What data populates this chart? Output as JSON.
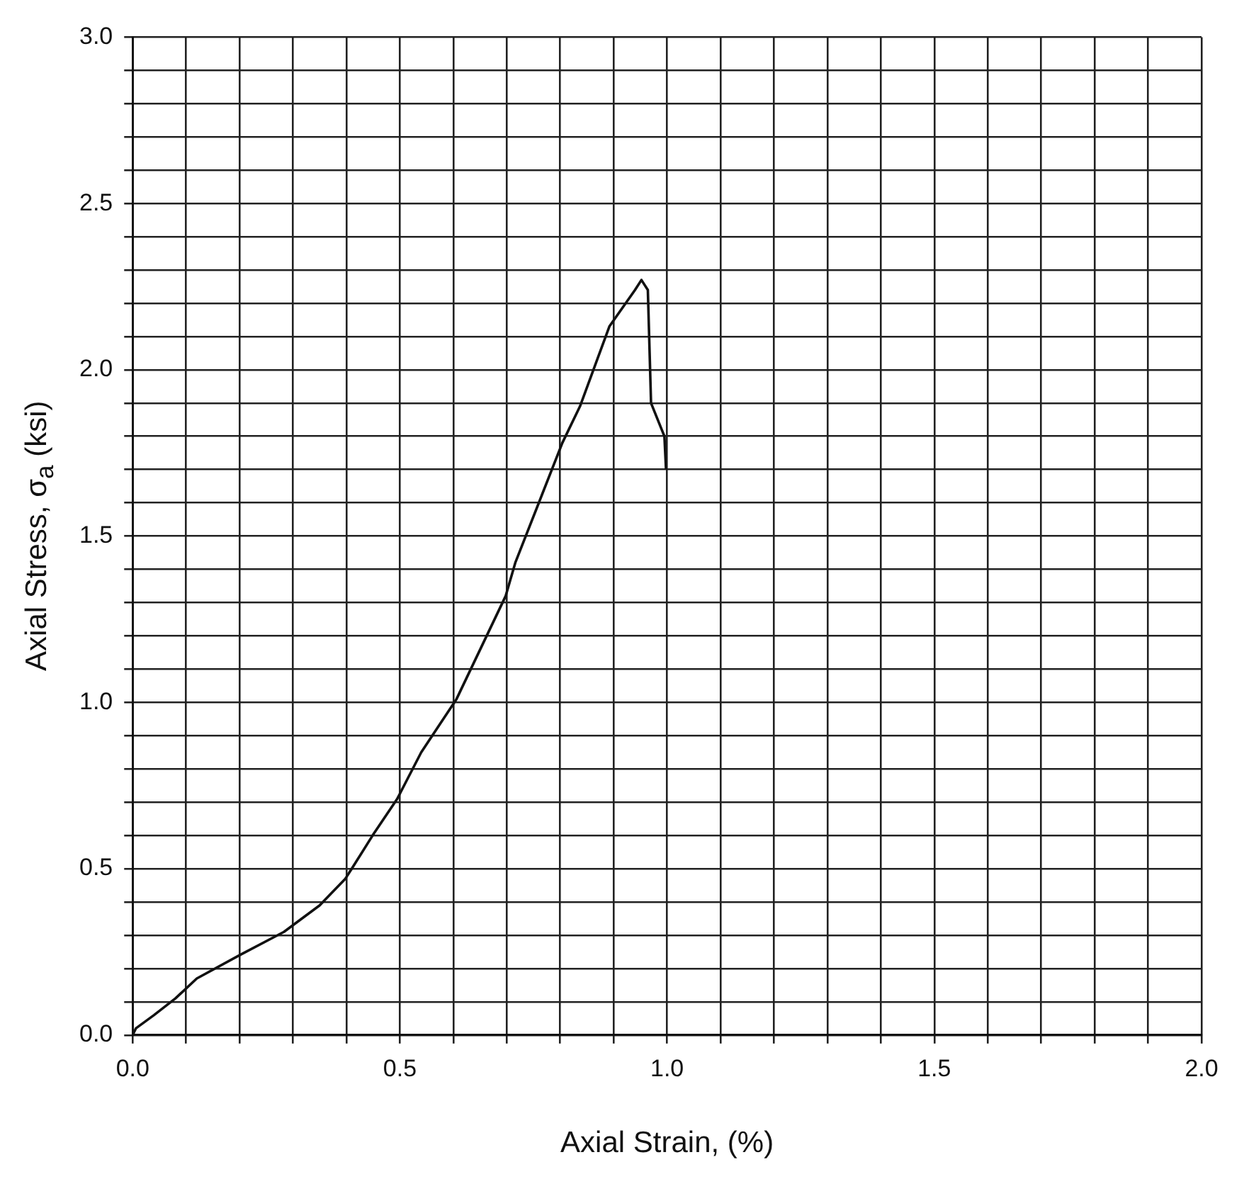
{
  "chart_data": {
    "type": "line",
    "xlabel": "Axial Strain, (%)",
    "ylabel": "Axial Stress, σ$_{a}$ (ksi)",
    "x": [
      0,
      0.006,
      0.04,
      0.08,
      0.12,
      0.2,
      0.283,
      0.35,
      0.398,
      0.41,
      0.449,
      0.495,
      0.54,
      0.606,
      0.698,
      0.716,
      0.804,
      0.837,
      0.892,
      0.94,
      0.952,
      0.964,
      0.97,
      0.99,
      0.995,
      0.998
    ],
    "series": [
      {
        "color": "#111111",
        "values": [
          0,
          0.02,
          0.06,
          0.11,
          0.17,
          0.24,
          0.31,
          0.39,
          0.47,
          0.5,
          0.6,
          0.71,
          0.85,
          1.01,
          1.32,
          1.42,
          1.78,
          1.89,
          2.13,
          2.24,
          2.27,
          2.24,
          1.9,
          1.82,
          1.8,
          1.7
        ]
      }
    ],
    "xlim": [
      0,
      2
    ],
    "xticks": [
      {
        "value": 0,
        "label": "0.0"
      },
      {
        "value": 0.1,
        "label": null
      },
      {
        "value": 0.2,
        "label": null
      },
      {
        "value": 0.3,
        "label": null
      },
      {
        "value": 0.4,
        "label": null
      },
      {
        "value": 0.5,
        "label": "0.5"
      },
      {
        "value": 0.6,
        "label": null
      },
      {
        "value": 0.7,
        "label": null
      },
      {
        "value": 0.8,
        "label": null
      },
      {
        "value": 0.9,
        "label": null
      },
      {
        "value": 1,
        "label": "1.0"
      },
      {
        "value": 1.1,
        "label": null
      },
      {
        "value": 1.2,
        "label": null
      },
      {
        "value": 1.3,
        "label": null
      },
      {
        "value": 1.4,
        "label": null
      },
      {
        "value": 1.5,
        "label": "1.5"
      },
      {
        "value": 1.6,
        "label": null
      },
      {
        "value": 1.7,
        "label": null
      },
      {
        "value": 1.8,
        "label": null
      },
      {
        "value": 1.9,
        "label": null
      },
      {
        "value": 2,
        "label": "2.0"
      }
    ],
    "ylim": [
      0,
      3
    ],
    "yticks": [
      {
        "value": 0,
        "label": "0.0"
      },
      {
        "value": 0.1,
        "label": null
      },
      {
        "value": 0.2,
        "label": null
      },
      {
        "value": 0.3,
        "label": null
      },
      {
        "value": 0.4,
        "label": null
      },
      {
        "value": 0.5,
        "label": "0.5"
      },
      {
        "value": 0.6,
        "label": null
      },
      {
        "value": 0.7,
        "label": null
      },
      {
        "value": 0.8,
        "label": null
      },
      {
        "value": 0.9,
        "label": null
      },
      {
        "value": 1,
        "label": "1.0"
      },
      {
        "value": 1.1,
        "label": null
      },
      {
        "value": 1.2,
        "label": null
      },
      {
        "value": 1.3,
        "label": null
      },
      {
        "value": 1.4,
        "label": null
      },
      {
        "value": 1.5,
        "label": "1.5"
      },
      {
        "value": 1.6,
        "label": null
      },
      {
        "value": 1.7,
        "label": null
      },
      {
        "value": 1.8,
        "label": null
      },
      {
        "value": 1.9,
        "label": null
      },
      {
        "value": 2,
        "label": "2.0"
      },
      {
        "value": 2.1,
        "label": null
      },
      {
        "value": 2.2,
        "label": null
      },
      {
        "value": 2.3,
        "label": null
      },
      {
        "value": 2.4,
        "label": null
      },
      {
        "value": 2.5,
        "label": "2.5"
      },
      {
        "value": 2.6,
        "label": null
      },
      {
        "value": 2.7,
        "label": null
      },
      {
        "value": 2.8,
        "label": null
      },
      {
        "value": 2.9,
        "label": null
      },
      {
        "value": 3,
        "label": "3.0"
      }
    ],
    "grid": true,
    "marker": "none",
    "line_style": "solid",
    "legend": false
  }
}
